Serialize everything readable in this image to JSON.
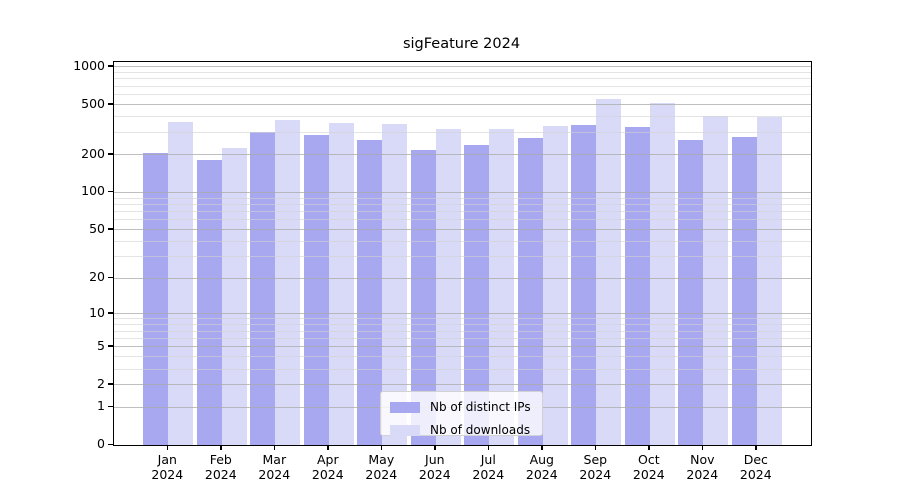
{
  "title": "sigFeature 2024",
  "chart_data": {
    "type": "bar",
    "title": "sigFeature 2024",
    "scale": "log1p",
    "grid": true,
    "legend_position": "lower center",
    "categories": [
      "Jan",
      "Feb",
      "Mar",
      "Apr",
      "May",
      "Jun",
      "Jul",
      "Aug",
      "Sep",
      "Oct",
      "Nov",
      "Dec"
    ],
    "year": "2024",
    "series": [
      {
        "name": "Nb of distinct IPs",
        "color": "#a8a8f0",
        "values": [
          207,
          181,
          305,
          288,
          263,
          216,
          237,
          270,
          346,
          330,
          262,
          276
        ]
      },
      {
        "name": "Nb of downloads",
        "color": "#d9d9f8",
        "values": [
          362,
          227,
          377,
          357,
          349,
          320,
          318,
          340,
          557,
          518,
          408,
          400
        ]
      }
    ],
    "xlabel": "",
    "ylabel": "",
    "ylim": [
      0,
      1090
    ],
    "yticks": [
      0,
      1,
      2,
      5,
      10,
      20,
      50,
      100,
      200,
      500,
      1000
    ],
    "yminor_gridlines": [
      3,
      4,
      6,
      7,
      8,
      9,
      30,
      40,
      60,
      70,
      80,
      90,
      300,
      400,
      600,
      700,
      800,
      900
    ]
  },
  "colors": {
    "bar_dark": "#a8a8f0",
    "bar_light": "#d9d9f8",
    "grid_major": "#aaaaaa",
    "grid_minor": "#d2d2d2",
    "spine": "#000000",
    "background": "#ffffff"
  }
}
